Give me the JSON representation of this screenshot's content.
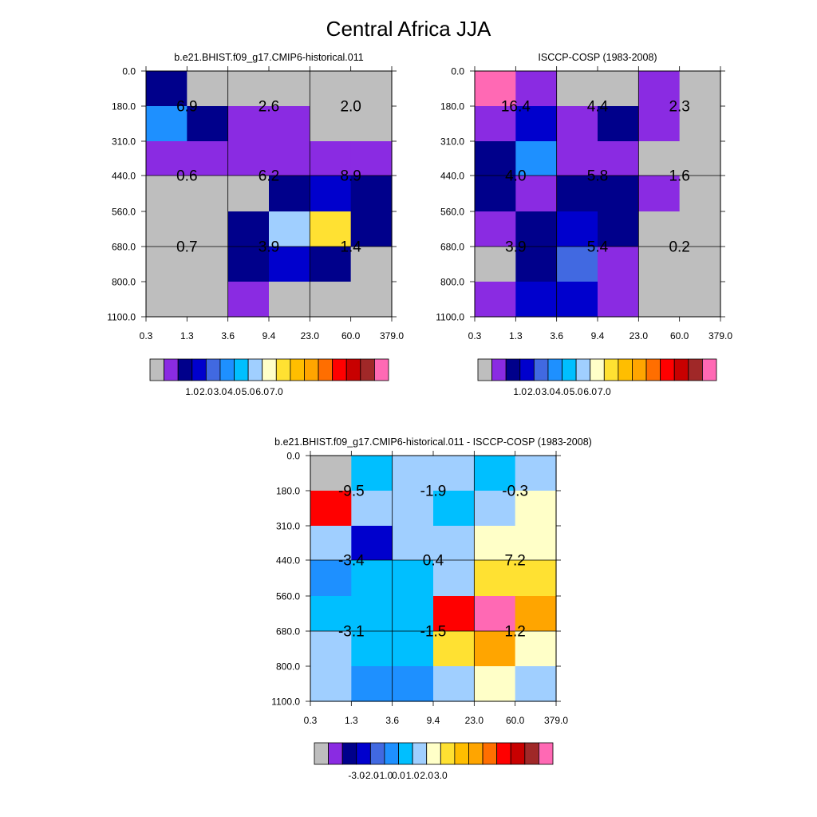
{
  "figure": {
    "title": "Central Africa JJA"
  },
  "chart_data": [
    {
      "type": "heatmap",
      "title": "b.e21.BHIST.f09_g17.CMIP6-historical.011",
      "x_tick_labels": [
        "0.3",
        "1.3",
        "3.6",
        "9.4",
        "23.0",
        "60.0",
        "379.0"
      ],
      "y_tick_labels": [
        "0.0",
        "180.0",
        "310.0",
        "440.0",
        "560.0",
        "680.0",
        "800.0",
        "1100.0"
      ],
      "cell_colors": [
        [
          "#00008B",
          "#BEBEBE",
          "#BEBEBE",
          "#BEBEBE",
          "#BEBEBE",
          "#BEBEBE"
        ],
        [
          "#1E90FF",
          "#00008B",
          "#8A2BE2",
          "#8A2BE2",
          "#BEBEBE",
          "#BEBEBE"
        ],
        [
          "#8A2BE2",
          "#8A2BE2",
          "#8A2BE2",
          "#8A2BE2",
          "#8A2BE2",
          "#8A2BE2"
        ],
        [
          "#BEBEBE",
          "#BEBEBE",
          "#BEBEBE",
          "#00008B",
          "#0000CD",
          "#00008B"
        ],
        [
          "#BEBEBE",
          "#BEBEBE",
          "#00008B",
          "#A0CFFF",
          "#FFE132",
          "#00008B"
        ],
        [
          "#BEBEBE",
          "#BEBEBE",
          "#00008B",
          "#0000CD",
          "#00008B",
          "#BEBEBE"
        ],
        [
          "#BEBEBE",
          "#BEBEBE",
          "#8A2BE2",
          "#BEBEBE",
          "#BEBEBE",
          "#BEBEBE"
        ]
      ],
      "block_totals": [
        [
          "6.9",
          "2.6",
          "2.0"
        ],
        [
          "0.6",
          "6.2",
          "8.9"
        ],
        [
          "0.7",
          "3.9",
          "1.4"
        ]
      ],
      "colorbar": {
        "colors": [
          "#BEBEBE",
          "#8A2BE2",
          "#00008B",
          "#0000CD",
          "#4169E1",
          "#1E90FF",
          "#00BFFF",
          "#A0CFFF",
          "#FFFFC8",
          "#FFE132",
          "#FFBE00",
          "#FFA500",
          "#FF6E00",
          "#FF0000",
          "#C80000",
          "#A02828",
          "#FF69B4"
        ],
        "tick_labels": [
          "1.0",
          "2.0",
          "3.0",
          "4.0",
          "5.0",
          "6.0",
          "7.0"
        ]
      }
    },
    {
      "type": "heatmap",
      "title": "ISCCP-COSP (1983-2008)",
      "x_tick_labels": [
        "0.3",
        "1.3",
        "3.6",
        "9.4",
        "23.0",
        "60.0",
        "379.0"
      ],
      "y_tick_labels": [
        "0.0",
        "180.0",
        "310.0",
        "440.0",
        "560.0",
        "680.0",
        "800.0",
        "1100.0"
      ],
      "cell_colors": [
        [
          "#FF69B4",
          "#8A2BE2",
          "#BEBEBE",
          "#BEBEBE",
          "#8A2BE2",
          "#BEBEBE"
        ],
        [
          "#8A2BE2",
          "#0000CD",
          "#8A2BE2",
          "#00008B",
          "#8A2BE2",
          "#BEBEBE"
        ],
        [
          "#00008B",
          "#1E90FF",
          "#8A2BE2",
          "#8A2BE2",
          "#BEBEBE",
          "#BEBEBE"
        ],
        [
          "#00008B",
          "#8A2BE2",
          "#00008B",
          "#00008B",
          "#8A2BE2",
          "#BEBEBE"
        ],
        [
          "#8A2BE2",
          "#00008B",
          "#0000CD",
          "#00008B",
          "#BEBEBE",
          "#BEBEBE"
        ],
        [
          "#BEBEBE",
          "#00008B",
          "#4169E1",
          "#8A2BE2",
          "#BEBEBE",
          "#BEBEBE"
        ],
        [
          "#8A2BE2",
          "#0000CD",
          "#0000CD",
          "#8A2BE2",
          "#BEBEBE",
          "#BEBEBE"
        ]
      ],
      "block_totals": [
        [
          "16.4",
          "4.4",
          "2.3"
        ],
        [
          "4.0",
          "5.8",
          "1.6"
        ],
        [
          "3.9",
          "5.4",
          "0.2"
        ]
      ],
      "colorbar": {
        "colors": [
          "#BEBEBE",
          "#8A2BE2",
          "#00008B",
          "#0000CD",
          "#4169E1",
          "#1E90FF",
          "#00BFFF",
          "#A0CFFF",
          "#FFFFC8",
          "#FFE132",
          "#FFBE00",
          "#FFA500",
          "#FF6E00",
          "#FF0000",
          "#C80000",
          "#A02828",
          "#FF69B4"
        ],
        "tick_labels": [
          "1.0",
          "2.0",
          "3.0",
          "4.0",
          "5.0",
          "6.0",
          "7.0"
        ]
      }
    },
    {
      "type": "heatmap",
      "title": "b.e21.BHIST.f09_g17.CMIP6-historical.011 - ISCCP-COSP (1983-2008)",
      "x_tick_labels": [
        "0.3",
        "1.3",
        "3.6",
        "9.4",
        "23.0",
        "60.0",
        "379.0"
      ],
      "y_tick_labels": [
        "0.0",
        "180.0",
        "310.0",
        "440.0",
        "560.0",
        "680.0",
        "800.0",
        "1100.0"
      ],
      "cell_colors": [
        [
          "#BEBEBE",
          "#00BFFF",
          "#A0CFFF",
          "#A0CFFF",
          "#00BFFF",
          "#A0CFFF"
        ],
        [
          "#FF0000",
          "#A0CFFF",
          "#A0CFFF",
          "#00BFFF",
          "#A0CFFF",
          "#FFFFC8"
        ],
        [
          "#A0CFFF",
          "#0000CD",
          "#A0CFFF",
          "#A0CFFF",
          "#FFFFC8",
          "#FFFFC8"
        ],
        [
          "#1E90FF",
          "#00BFFF",
          "#00BFFF",
          "#A0CFFF",
          "#FFE132",
          "#FFE132"
        ],
        [
          "#00BFFF",
          "#00BFFF",
          "#00BFFF",
          "#FF0000",
          "#FF69B4",
          "#FFA500"
        ],
        [
          "#A0CFFF",
          "#00BFFF",
          "#00BFFF",
          "#FFE132",
          "#FFA500",
          "#FFFFC8"
        ],
        [
          "#A0CFFF",
          "#1E90FF",
          "#1E90FF",
          "#A0CFFF",
          "#FFFFC8",
          "#A0CFFF"
        ]
      ],
      "block_totals": [
        [
          "-9.5",
          "-1.9",
          "-0.3"
        ],
        [
          "-3.4",
          "0.4",
          "7.2"
        ],
        [
          "-3.1",
          "-1.5",
          "1.2"
        ]
      ],
      "colorbar": {
        "colors": [
          "#BEBEBE",
          "#8A2BE2",
          "#00008B",
          "#0000CD",
          "#4169E1",
          "#1E90FF",
          "#00BFFF",
          "#A0CFFF",
          "#FFFFC8",
          "#FFE132",
          "#FFBE00",
          "#FFA500",
          "#FF6E00",
          "#FF0000",
          "#C80000",
          "#A02828",
          "#FF69B4"
        ],
        "tick_labels": [
          "-3.0",
          "-2.0",
          "-1.0",
          "0.0",
          "1.0",
          "2.0",
          "3.0"
        ]
      }
    }
  ]
}
